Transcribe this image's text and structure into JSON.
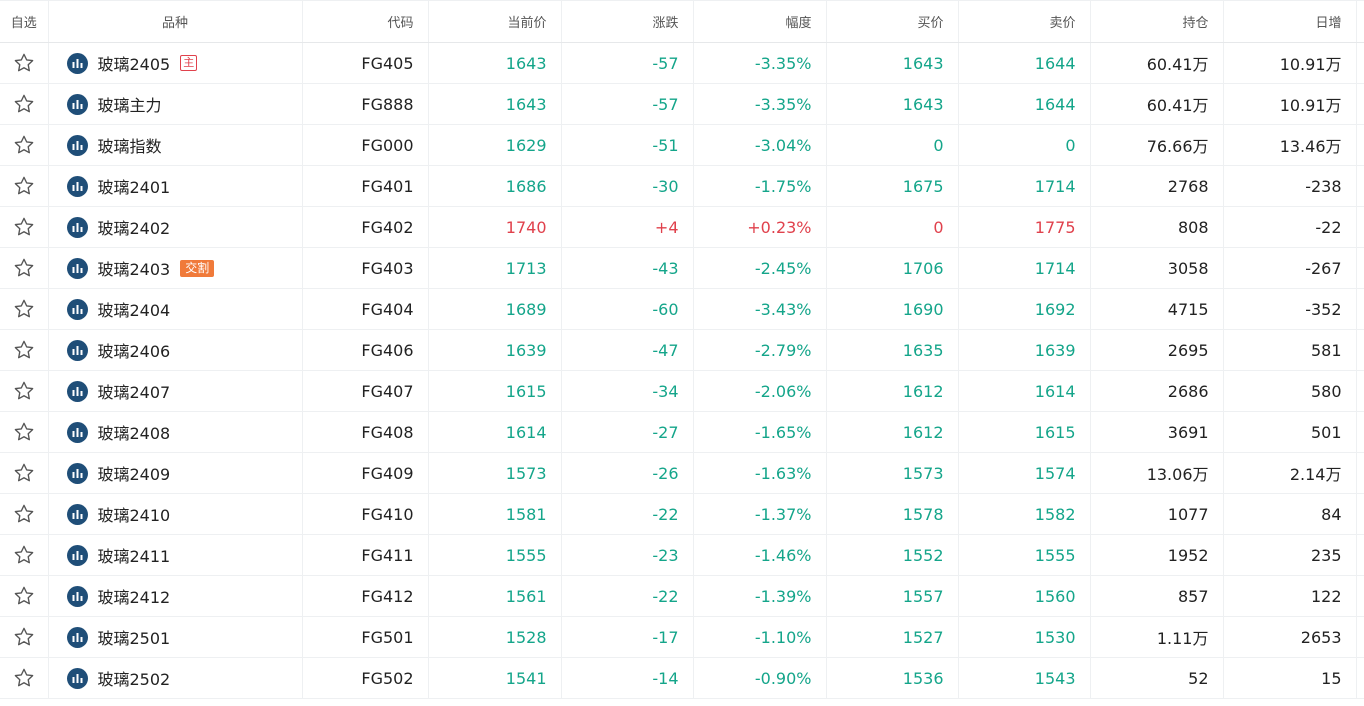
{
  "columns": {
    "favorite": "自选",
    "name": "品种",
    "code": "代码",
    "price": "当前价",
    "change": "涨跌",
    "pct": "幅度",
    "bid": "买价",
    "ask": "卖价",
    "oi": "持仓",
    "oi_chg": "日增"
  },
  "colors": {
    "up": "#e0414c",
    "down": "#14a58a",
    "icon_bg": "#1f4e78",
    "delivery_badge": "#f07a3a"
  },
  "icons": {
    "favorite": "star-outline-icon",
    "chart": "bar-chart-icon"
  },
  "rows": [
    {
      "name": "玻璃2405",
      "badge": "主",
      "badge_type": "main",
      "code": "FG405",
      "price": "1643",
      "change": "-57",
      "pct": "-3.35%",
      "bid": "1643",
      "ask": "1644",
      "oi": "60.41万",
      "oi_chg": "10.91万",
      "price_dir": "down",
      "change_dir": "down",
      "bid_dir": "down",
      "ask_dir": "down"
    },
    {
      "name": "玻璃主力",
      "badge": "",
      "badge_type": "",
      "code": "FG888",
      "price": "1643",
      "change": "-57",
      "pct": "-3.35%",
      "bid": "1643",
      "ask": "1644",
      "oi": "60.41万",
      "oi_chg": "10.91万",
      "price_dir": "down",
      "change_dir": "down",
      "bid_dir": "down",
      "ask_dir": "down"
    },
    {
      "name": "玻璃指数",
      "badge": "",
      "badge_type": "",
      "code": "FG000",
      "price": "1629",
      "change": "-51",
      "pct": "-3.04%",
      "bid": "0",
      "ask": "0",
      "oi": "76.66万",
      "oi_chg": "13.46万",
      "price_dir": "down",
      "change_dir": "down",
      "bid_dir": "down",
      "ask_dir": "down"
    },
    {
      "name": "玻璃2401",
      "badge": "",
      "badge_type": "",
      "code": "FG401",
      "price": "1686",
      "change": "-30",
      "pct": "-1.75%",
      "bid": "1675",
      "ask": "1714",
      "oi": "2768",
      "oi_chg": "-238",
      "price_dir": "down",
      "change_dir": "down",
      "bid_dir": "down",
      "ask_dir": "down"
    },
    {
      "name": "玻璃2402",
      "badge": "",
      "badge_type": "",
      "code": "FG402",
      "price": "1740",
      "change": "+4",
      "pct": "+0.23%",
      "bid": "0",
      "ask": "1775",
      "oi": "808",
      "oi_chg": "-22",
      "price_dir": "up",
      "change_dir": "up",
      "bid_dir": "up",
      "ask_dir": "up"
    },
    {
      "name": "玻璃2403",
      "badge": "交割",
      "badge_type": "delivery",
      "code": "FG403",
      "price": "1713",
      "change": "-43",
      "pct": "-2.45%",
      "bid": "1706",
      "ask": "1714",
      "oi": "3058",
      "oi_chg": "-267",
      "price_dir": "down",
      "change_dir": "down",
      "bid_dir": "down",
      "ask_dir": "down"
    },
    {
      "name": "玻璃2404",
      "badge": "",
      "badge_type": "",
      "code": "FG404",
      "price": "1689",
      "change": "-60",
      "pct": "-3.43%",
      "bid": "1690",
      "ask": "1692",
      "oi": "4715",
      "oi_chg": "-352",
      "price_dir": "down",
      "change_dir": "down",
      "bid_dir": "down",
      "ask_dir": "down"
    },
    {
      "name": "玻璃2406",
      "badge": "",
      "badge_type": "",
      "code": "FG406",
      "price": "1639",
      "change": "-47",
      "pct": "-2.79%",
      "bid": "1635",
      "ask": "1639",
      "oi": "2695",
      "oi_chg": "581",
      "price_dir": "down",
      "change_dir": "down",
      "bid_dir": "down",
      "ask_dir": "down"
    },
    {
      "name": "玻璃2407",
      "badge": "",
      "badge_type": "",
      "code": "FG407",
      "price": "1615",
      "change": "-34",
      "pct": "-2.06%",
      "bid": "1612",
      "ask": "1614",
      "oi": "2686",
      "oi_chg": "580",
      "price_dir": "down",
      "change_dir": "down",
      "bid_dir": "down",
      "ask_dir": "down"
    },
    {
      "name": "玻璃2408",
      "badge": "",
      "badge_type": "",
      "code": "FG408",
      "price": "1614",
      "change": "-27",
      "pct": "-1.65%",
      "bid": "1612",
      "ask": "1615",
      "oi": "3691",
      "oi_chg": "501",
      "price_dir": "down",
      "change_dir": "down",
      "bid_dir": "down",
      "ask_dir": "down"
    },
    {
      "name": "玻璃2409",
      "badge": "",
      "badge_type": "",
      "code": "FG409",
      "price": "1573",
      "change": "-26",
      "pct": "-1.63%",
      "bid": "1573",
      "ask": "1574",
      "oi": "13.06万",
      "oi_chg": "2.14万",
      "price_dir": "down",
      "change_dir": "down",
      "bid_dir": "down",
      "ask_dir": "down"
    },
    {
      "name": "玻璃2410",
      "badge": "",
      "badge_type": "",
      "code": "FG410",
      "price": "1581",
      "change": "-22",
      "pct": "-1.37%",
      "bid": "1578",
      "ask": "1582",
      "oi": "1077",
      "oi_chg": "84",
      "price_dir": "down",
      "change_dir": "down",
      "bid_dir": "down",
      "ask_dir": "down"
    },
    {
      "name": "玻璃2411",
      "badge": "",
      "badge_type": "",
      "code": "FG411",
      "price": "1555",
      "change": "-23",
      "pct": "-1.46%",
      "bid": "1552",
      "ask": "1555",
      "oi": "1952",
      "oi_chg": "235",
      "price_dir": "down",
      "change_dir": "down",
      "bid_dir": "down",
      "ask_dir": "down"
    },
    {
      "name": "玻璃2412",
      "badge": "",
      "badge_type": "",
      "code": "FG412",
      "price": "1561",
      "change": "-22",
      "pct": "-1.39%",
      "bid": "1557",
      "ask": "1560",
      "oi": "857",
      "oi_chg": "122",
      "price_dir": "down",
      "change_dir": "down",
      "bid_dir": "down",
      "ask_dir": "down"
    },
    {
      "name": "玻璃2501",
      "badge": "",
      "badge_type": "",
      "code": "FG501",
      "price": "1528",
      "change": "-17",
      "pct": "-1.10%",
      "bid": "1527",
      "ask": "1530",
      "oi": "1.11万",
      "oi_chg": "2653",
      "price_dir": "down",
      "change_dir": "down",
      "bid_dir": "down",
      "ask_dir": "down"
    },
    {
      "name": "玻璃2502",
      "badge": "",
      "badge_type": "",
      "code": "FG502",
      "price": "1541",
      "change": "-14",
      "pct": "-0.90%",
      "bid": "1536",
      "ask": "1543",
      "oi": "52",
      "oi_chg": "15",
      "price_dir": "down",
      "change_dir": "down",
      "bid_dir": "down",
      "ask_dir": "down"
    }
  ]
}
